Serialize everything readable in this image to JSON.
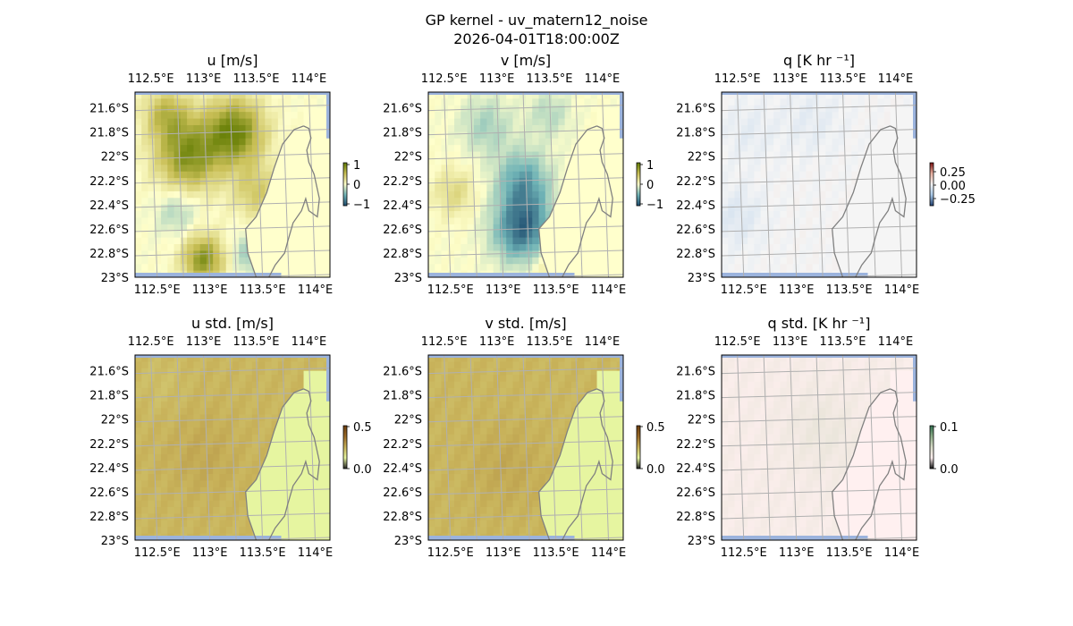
{
  "figure": {
    "title": "GP kernel - uv_matern12_noise",
    "subtitle": "2026-04-01T18:00:00Z"
  },
  "chart_data": [
    {
      "type": "heatmap",
      "title": "u [m/s]",
      "lon_ticks": [
        "112.5°E",
        "113°E",
        "113.5°E",
        "114°E"
      ],
      "lon_tick_values": [
        112.5,
        113.0,
        113.5,
        114.0
      ],
      "lat_ticks": [
        "21.6°S",
        "21.8°S",
        "22°S",
        "22.2°S",
        "22.4°S",
        "22.6°S",
        "22.8°S",
        "23°S"
      ],
      "lat_tick_values": [
        -21.6,
        -21.8,
        -22.0,
        -22.2,
        -22.4,
        -22.6,
        -22.8,
        -23.0
      ],
      "xlim": [
        112.35,
        114.2
      ],
      "ylim": [
        -23.0,
        -21.47
      ],
      "grid": true,
      "colorbar": {
        "ticks": [
          "1",
          "0",
          "−1"
        ],
        "range": [
          -1,
          1
        ],
        "colors": [
          "#1d4b6e",
          "#6fb3b6",
          "#ffffcc",
          "#c9bf56",
          "#5f7a00"
        ]
      },
      "blobs": [
        {
          "lon": 113.3,
          "lat": -21.8,
          "value": 0.9,
          "r": 0.28
        },
        {
          "lon": 112.85,
          "lat": -22.0,
          "value": 0.8,
          "r": 0.3
        },
        {
          "lon": 112.65,
          "lat": -21.65,
          "value": 0.5,
          "r": 0.22
        },
        {
          "lon": 113.0,
          "lat": -22.85,
          "value": 0.8,
          "r": 0.2
        },
        {
          "lon": 112.75,
          "lat": -22.45,
          "value": -0.3,
          "r": 0.2
        },
        {
          "lon": 113.45,
          "lat": -22.8,
          "value": -0.35,
          "r": 0.18
        },
        {
          "lon": 113.5,
          "lat": -22.3,
          "value": 0.4,
          "r": 0.22
        }
      ]
    },
    {
      "type": "heatmap",
      "title": "v [m/s]",
      "lon_ticks": [
        "112.5°E",
        "113°E",
        "113.5°E",
        "114°E"
      ],
      "lon_tick_values": [
        112.5,
        113.0,
        113.5,
        114.0
      ],
      "lat_ticks": [
        "21.6°S",
        "21.8°S",
        "22°S",
        "22.2°S",
        "22.4°S",
        "22.6°S",
        "22.8°S",
        "23°S"
      ],
      "lat_tick_values": [
        -21.6,
        -21.8,
        -22.0,
        -22.2,
        -22.4,
        -22.6,
        -22.8,
        -23.0
      ],
      "xlim": [
        112.35,
        114.2
      ],
      "ylim": [
        -23.0,
        -21.47
      ],
      "grid": true,
      "colorbar": {
        "ticks": [
          "1",
          "0",
          "−1"
        ],
        "range": [
          -1,
          1
        ],
        "colors": [
          "#1d4b6e",
          "#6fb3b6",
          "#ffffcc",
          "#c9bf56",
          "#5f7a00"
        ]
      },
      "blobs": [
        {
          "lon": 113.25,
          "lat": -22.6,
          "value": -0.85,
          "r": 0.28
        },
        {
          "lon": 113.25,
          "lat": -22.2,
          "value": -0.55,
          "r": 0.25
        },
        {
          "lon": 112.9,
          "lat": -21.75,
          "value": -0.3,
          "r": 0.25
        },
        {
          "lon": 113.5,
          "lat": -21.65,
          "value": -0.25,
          "r": 0.2
        },
        {
          "lon": 112.6,
          "lat": -22.3,
          "value": 0.3,
          "r": 0.2
        },
        {
          "lon": 113.5,
          "lat": -22.9,
          "value": 0.25,
          "r": 0.2
        }
      ]
    },
    {
      "type": "heatmap",
      "title": "q [K hr ⁻¹]",
      "lon_ticks": [
        "112.5°E",
        "113°E",
        "113.5°E",
        "114°E"
      ],
      "lon_tick_values": [
        112.5,
        113.0,
        113.5,
        114.0
      ],
      "lat_ticks": [
        "21.6°S",
        "21.8°S",
        "22°S",
        "22.2°S",
        "22.4°S",
        "22.6°S",
        "22.8°S",
        "23°S"
      ],
      "lat_tick_values": [
        -21.6,
        -21.8,
        -22.0,
        -22.2,
        -22.4,
        -22.6,
        -22.8,
        -23.0
      ],
      "xlim": [
        112.35,
        114.2
      ],
      "ylim": [
        -23.0,
        -21.47
      ],
      "grid": true,
      "colorbar": {
        "ticks": [
          "0.25",
          "0.00",
          "−0.25"
        ],
        "range": [
          -0.4,
          0.4
        ],
        "colors": [
          "#1f3f6f",
          "#a8c8e8",
          "#f5f5f5",
          "#e8b0a0",
          "#7a1010"
        ]
      },
      "blobs": [
        {
          "lon": 112.5,
          "lat": -22.5,
          "value": -0.06,
          "r": 0.25
        },
        {
          "lon": 113.2,
          "lat": -21.7,
          "value": -0.04,
          "r": 0.3
        },
        {
          "lon": 112.6,
          "lat": -21.8,
          "value": -0.04,
          "r": 0.25
        }
      ]
    },
    {
      "type": "heatmap",
      "title": "u std. [m/s]",
      "lon_ticks": [
        "112.5°E",
        "113°E",
        "113.5°E",
        "114°E"
      ],
      "lon_tick_values": [
        112.5,
        113.0,
        113.5,
        114.0
      ],
      "lat_ticks": [
        "21.6°S",
        "21.8°S",
        "22°S",
        "22.2°S",
        "22.4°S",
        "22.6°S",
        "22.8°S",
        "23°S"
      ],
      "lat_tick_values": [
        -21.6,
        -21.8,
        -22.0,
        -22.2,
        -22.4,
        -22.6,
        -22.8,
        -23.0
      ],
      "xlim": [
        112.35,
        114.2
      ],
      "ylim": [
        -23.0,
        -21.47
      ],
      "grid": true,
      "colorbar": {
        "ticks": [
          "0.5",
          "0.0"
        ],
        "range": [
          0,
          0.6
        ],
        "colors": [
          "#202020",
          "#e6f5a0",
          "#c8b25a",
          "#9a6a28",
          "#6b3e0e"
        ]
      },
      "base": 0.29,
      "blobs": [
        {
          "lon": 113.0,
          "lat": -22.3,
          "value": 0.03,
          "r": 0.35
        },
        {
          "lon": 112.6,
          "lat": -21.7,
          "value": -0.02,
          "r": 0.25
        }
      ]
    },
    {
      "type": "heatmap",
      "title": "v std. [m/s]",
      "lon_ticks": [
        "112.5°E",
        "113°E",
        "113.5°E",
        "114°E"
      ],
      "lon_tick_values": [
        112.5,
        113.0,
        113.5,
        114.0
      ],
      "lat_ticks": [
        "21.6°S",
        "21.8°S",
        "22°S",
        "22.2°S",
        "22.4°S",
        "22.6°S",
        "22.8°S",
        "23°S"
      ],
      "lat_tick_values": [
        -21.6,
        -21.8,
        -22.0,
        -22.2,
        -22.4,
        -22.6,
        -22.8,
        -23.0
      ],
      "xlim": [
        112.35,
        114.2
      ],
      "ylim": [
        -23.0,
        -21.47
      ],
      "grid": true,
      "colorbar": {
        "ticks": [
          "0.5",
          "0.0"
        ],
        "range": [
          0,
          0.6
        ],
        "colors": [
          "#202020",
          "#e6f5a0",
          "#c8b25a",
          "#9a6a28",
          "#6b3e0e"
        ]
      },
      "base": 0.29,
      "blobs": [
        {
          "lon": 113.1,
          "lat": -22.4,
          "value": 0.03,
          "r": 0.35
        }
      ]
    },
    {
      "type": "heatmap",
      "title": "q std. [K hr ⁻¹]",
      "lon_ticks": [
        "112.5°E",
        "113°E",
        "113.5°E",
        "114°E"
      ],
      "lon_tick_values": [
        112.5,
        113.0,
        113.5,
        114.0
      ],
      "lat_ticks": [
        "21.6°S",
        "21.8°S",
        "22°S",
        "22.2°S",
        "22.4°S",
        "22.6°S",
        "22.8°S",
        "23°S"
      ],
      "lat_tick_values": [
        -21.6,
        -21.8,
        -22.0,
        -22.2,
        -22.4,
        -22.6,
        -22.8,
        -23.0
      ],
      "xlim": [
        112.35,
        114.2
      ],
      "ylim": [
        -23.0,
        -21.47
      ],
      "grid": true,
      "colorbar": {
        "ticks": [
          "0.1",
          "0.0"
        ],
        "range": [
          0,
          0.15
        ],
        "colors": [
          "#101010",
          "#fff0f0",
          "#d8dcc8",
          "#8fae8a",
          "#2f6f4f"
        ]
      },
      "base": 0.045,
      "blobs": [
        {
          "lon": 113.3,
          "lat": -22.1,
          "value": 0.01,
          "r": 0.35
        }
      ]
    }
  ],
  "colors": {
    "land_uv": "#ffffcc",
    "land_q": "#f5f5f5",
    "land_std": "#e6f5a0",
    "land_qstd": "#fff0f0",
    "ocean_edge": "#9bb3dd",
    "coastline": "#808080",
    "grid": "#b0b0b0"
  }
}
